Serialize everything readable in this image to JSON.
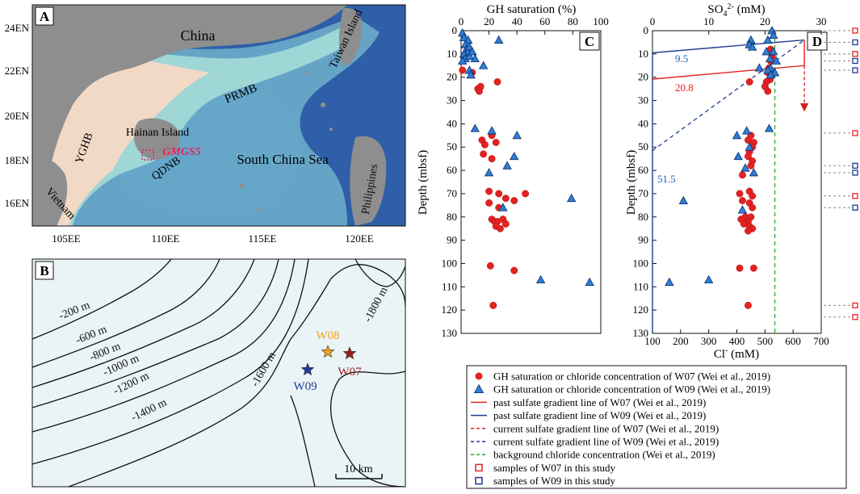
{
  "panels": {
    "A": {
      "label": "A",
      "place_labels": [
        "China",
        "Taiwan Island",
        "PRMB",
        "Hainan Island",
        "GMGS5",
        "YGHB",
        "QDNB",
        "South China Sea",
        "Vietnam",
        "Philippines"
      ],
      "lat_ticks": [
        "24EN",
        "22EN",
        "20EN",
        "18EN",
        "16EN"
      ],
      "lon_ticks": [
        "105EE",
        "110EE",
        "115EE",
        "120EE"
      ],
      "colors": {
        "land": "#8e8e8e",
        "shelf": "#f2d9c6",
        "slope": "#9fd6d6",
        "deep": "#2e5fa8",
        "study_box": "#e0245e"
      }
    },
    "B": {
      "label": "B",
      "contour_labels": [
        "-200 m",
        "-600 m",
        "-800 m",
        "-1000 m",
        "-1200 m",
        "-1400 m",
        "-1600 m",
        "-1800 m"
      ],
      "sites": [
        {
          "name": "W08",
          "color": "#f0a020"
        },
        {
          "name": "W07",
          "color": "#9c1c1c"
        },
        {
          "name": "W09",
          "color": "#1f3a93"
        }
      ],
      "scale_bar": "10 km",
      "background": "#eaf4f6"
    }
  },
  "chart_data": [
    {
      "panel": "C",
      "type": "scatter",
      "title": "",
      "xlabel": "GH saturation (%)",
      "ylabel": "Depth (mbsf)",
      "xlim": [
        0,
        100
      ],
      "ylim": [
        0,
        130
      ],
      "x_ticks": [
        "0",
        "20",
        "40",
        "60",
        "80",
        "100"
      ],
      "y_ticks": [
        "0",
        "10",
        "20",
        "30",
        "40",
        "50",
        "60",
        "70",
        "80",
        "90",
        "100",
        "110",
        "120",
        "130"
      ],
      "series": [
        {
          "name": "W07",
          "marker": "circle",
          "color": "#e32222",
          "points": [
            [
              1,
              17
            ],
            [
              8,
              18
            ],
            [
              12,
              25
            ],
            [
              14,
              24
            ],
            [
              13,
              26
            ],
            [
              26,
              22
            ],
            [
              22,
              45
            ],
            [
              15,
              47
            ],
            [
              17,
              49
            ],
            [
              25,
              48
            ],
            [
              16,
              53
            ],
            [
              22,
              55
            ],
            [
              20,
              69
            ],
            [
              27,
              70
            ],
            [
              32,
              72
            ],
            [
              38,
              73
            ],
            [
              46,
              70
            ],
            [
              20,
              74
            ],
            [
              27,
              76
            ],
            [
              22,
              81
            ],
            [
              24,
              82
            ],
            [
              26,
              82
            ],
            [
              25,
              84
            ],
            [
              30,
              81
            ],
            [
              32,
              83
            ],
            [
              28,
              85
            ],
            [
              21,
              101
            ],
            [
              38,
              103
            ],
            [
              23,
              118
            ]
          ]
        },
        {
          "name": "W09",
          "marker": "triangle",
          "color": "#2f7fd2",
          "points": [
            [
              1,
              1
            ],
            [
              2,
              3
            ],
            [
              5,
              4
            ],
            [
              27,
              4
            ],
            [
              3,
              6
            ],
            [
              4,
              8
            ],
            [
              5,
              9
            ],
            [
              6,
              7
            ],
            [
              2,
              10
            ],
            [
              3,
              12
            ],
            [
              6,
              11
            ],
            [
              1,
              13
            ],
            [
              8,
              9
            ],
            [
              10,
              12
            ],
            [
              16,
              15
            ],
            [
              6,
              17
            ],
            [
              7,
              19
            ],
            [
              10,
              42
            ],
            [
              22,
              43
            ],
            [
              40,
              45
            ],
            [
              38,
              54
            ],
            [
              33,
              58
            ],
            [
              20,
              61
            ],
            [
              30,
              76
            ],
            [
              79,
              72
            ],
            [
              57,
              107
            ],
            [
              92,
              108
            ]
          ]
        }
      ]
    },
    {
      "panel": "D",
      "type": "scatter",
      "title": "",
      "xlabel_top": "SO4 2- (mM)",
      "xlabel_bottom": "Cl- (mM)",
      "ylabel": "Depth (mbsf)",
      "xlim_top": [
        0,
        30
      ],
      "xlim_bottom": [
        100,
        700
      ],
      "ylim": [
        0,
        130
      ],
      "x_ticks_top": [
        "0",
        "10",
        "20",
        "30"
      ],
      "x_ticks_bottom": [
        "100",
        "200",
        "300",
        "400",
        "500",
        "600",
        "700"
      ],
      "y_ticks": [
        "0",
        "10",
        "20",
        "30",
        "40",
        "50",
        "60",
        "70",
        "80",
        "90",
        "100",
        "110",
        "120",
        "130"
      ],
      "annotations": [
        {
          "text": "9.5",
          "color": "#1f5fb5"
        },
        {
          "text": "20.8",
          "color": "#e32222"
        },
        {
          "text": "51.5",
          "color": "#1f5fb5"
        }
      ],
      "background_chloride": 535,
      "series": [
        {
          "name": "W07",
          "marker": "circle",
          "color": "#e32222",
          "points": [
            [
              520,
              8
            ],
            [
              525,
              11
            ],
            [
              520,
              13
            ],
            [
              515,
              16
            ],
            [
              510,
              18
            ],
            [
              522,
              19
            ],
            [
              518,
              21
            ],
            [
              505,
              22
            ],
            [
              445,
              22
            ],
            [
              500,
              24
            ],
            [
              510,
              26
            ],
            [
              450,
              45
            ],
            [
              440,
              47
            ],
            [
              460,
              48
            ],
            [
              455,
              50
            ],
            [
              445,
              52
            ],
            [
              440,
              54
            ],
            [
              455,
              56
            ],
            [
              450,
              58
            ],
            [
              420,
              62
            ],
            [
              445,
              69
            ],
            [
              410,
              70
            ],
            [
              455,
              71
            ],
            [
              420,
              73
            ],
            [
              445,
              74
            ],
            [
              455,
              76
            ],
            [
              415,
              81
            ],
            [
              430,
              80
            ],
            [
              440,
              82
            ],
            [
              450,
              80
            ],
            [
              425,
              83
            ],
            [
              445,
              84
            ],
            [
              455,
              85
            ],
            [
              440,
              86
            ],
            [
              410,
              102
            ],
            [
              460,
              102
            ],
            [
              440,
              118
            ]
          ]
        },
        {
          "name": "W09",
          "marker": "triangle",
          "color": "#2f7fd2",
          "points": [
            [
              525,
              0
            ],
            [
              530,
              2
            ],
            [
              450,
              4
            ],
            [
              510,
              4
            ],
            [
              445,
              6
            ],
            [
              455,
              7
            ],
            [
              505,
              9
            ],
            [
              530,
              9
            ],
            [
              518,
              12
            ],
            [
              540,
              13
            ],
            [
              520,
              16
            ],
            [
              480,
              16
            ],
            [
              510,
              17
            ],
            [
              535,
              18
            ],
            [
              520,
              19
            ],
            [
              515,
              42
            ],
            [
              435,
              43
            ],
            [
              400,
              45
            ],
            [
              445,
              50
            ],
            [
              405,
              54
            ],
            [
              430,
              59
            ],
            [
              460,
              61
            ],
            [
              420,
              77
            ],
            [
              210,
              73
            ],
            [
              300,
              107
            ],
            [
              160,
              108
            ]
          ]
        }
      ]
    }
  ],
  "side_markers": [
    {
      "depth": 0,
      "color": "#e32222"
    },
    {
      "depth": 5,
      "color": "#1f3a93"
    },
    {
      "depth": 10,
      "color": "#e32222"
    },
    {
      "depth": 13,
      "color": "#1f3a93"
    },
    {
      "depth": 17,
      "color": "#1f3a93"
    },
    {
      "depth": 44,
      "color": "#e32222"
    },
    {
      "depth": 58,
      "color": "#1f3a93"
    },
    {
      "depth": 61,
      "color": "#1f3a93"
    },
    {
      "depth": 71,
      "color": "#e32222"
    },
    {
      "depth": 76,
      "color": "#1f3a93"
    },
    {
      "depth": 118,
      "color": "#e32222"
    },
    {
      "depth": 123,
      "color": "#e32222"
    }
  ],
  "legend": [
    {
      "kind": "circle",
      "color": "#e32222",
      "text": "GH saturation or chloride concentration of W07 (Wei et al., 2019)"
    },
    {
      "kind": "triangle",
      "color": "#2f7fd2",
      "text": "GH saturation or chloride concentration of W09 (Wei et al., 2019)"
    },
    {
      "kind": "solid",
      "color": "#e32222",
      "text": "past sulfate gradient line of W07 (Wei et al., 2019)"
    },
    {
      "kind": "solid",
      "color": "#1f3a93",
      "text": "past sulfate gradient line of W09 (Wei et al., 2019)"
    },
    {
      "kind": "dashed",
      "color": "#e32222",
      "text": "current sulfate gradient line of W07 (Wei et al., 2019)"
    },
    {
      "kind": "dashed",
      "color": "#1f3a93",
      "text": "current sulfate gradient line of W09 (Wei et al., 2019)"
    },
    {
      "kind": "dashed",
      "color": "#22a83a",
      "text": "background chloride concentration (Wei et al., 2019)"
    },
    {
      "kind": "square",
      "color": "#e32222",
      "text": "samples of W07 in this study"
    },
    {
      "kind": "square",
      "color": "#1f3a93",
      "text": "samples of W09 in this study"
    }
  ]
}
